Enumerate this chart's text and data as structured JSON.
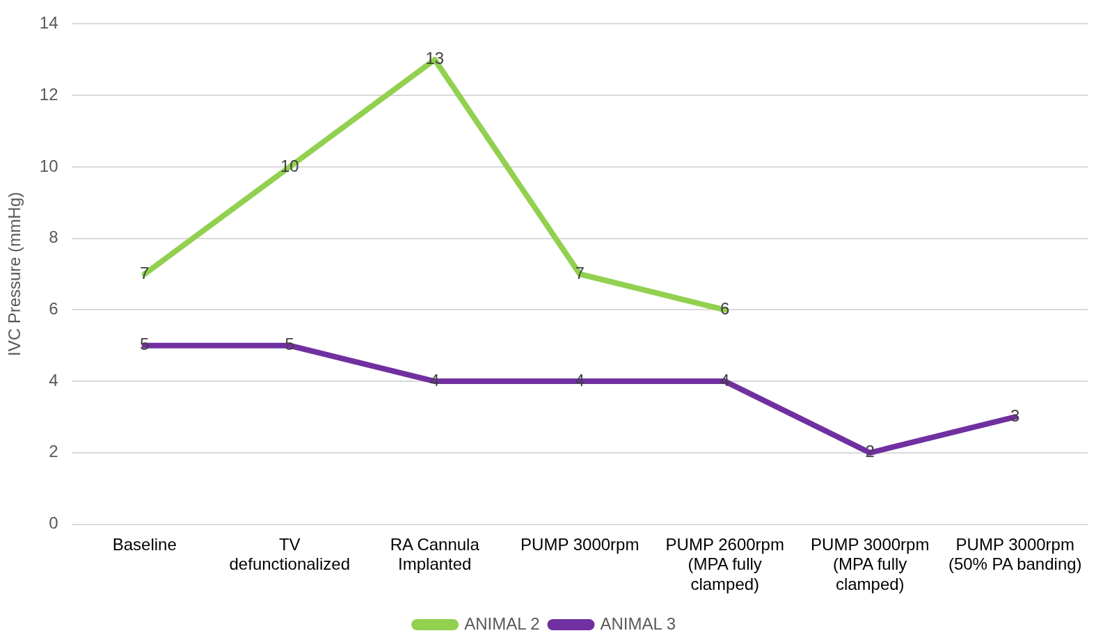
{
  "chart_data": {
    "type": "line",
    "ylabel": "IVC Pressure (mmHg)",
    "categories": [
      "Baseline",
      "TV defunctionalized",
      "RA Cannula Implanted",
      "PUMP 3000rpm",
      "PUMP 2600rpm (MPA fully clamped)",
      "PUMP 3000rpm (MPA fully clamped)",
      "PUMP 3000rpm (50% PA banding)"
    ],
    "series": [
      {
        "name": "ANIMAL 2",
        "color": "#92d050",
        "values": [
          7,
          10,
          13,
          7,
          6,
          null,
          null
        ]
      },
      {
        "name": "ANIMAL 3",
        "color": "#7030a0",
        "values": [
          5,
          5,
          4,
          4,
          4,
          2,
          3
        ]
      }
    ],
    "ylim": [
      0,
      14
    ],
    "yticks": [
      0,
      2,
      4,
      6,
      8,
      10,
      12,
      14
    ],
    "grid": "y",
    "legend": "bottom",
    "data_labels": true,
    "marker": "none"
  }
}
